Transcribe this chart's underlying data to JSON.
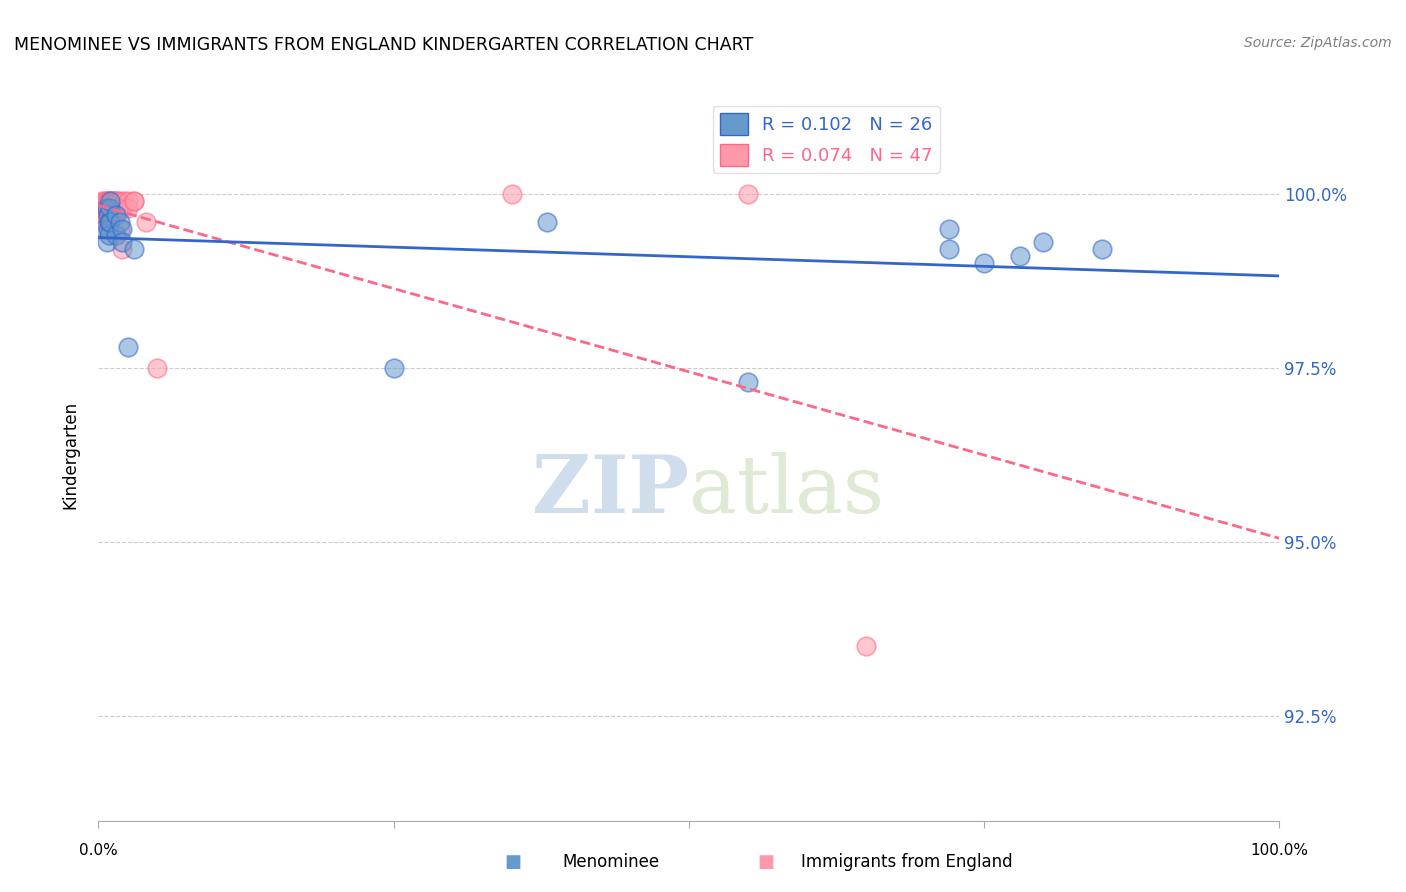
{
  "title": "MENOMINEE VS IMMIGRANTS FROM ENGLAND KINDERGARTEN CORRELATION CHART",
  "source": "Source: ZipAtlas.com",
  "ylabel": "Kindergarten",
  "yticks": [
    92.5,
    95.0,
    97.5,
    100.0
  ],
  "ytick_labels": [
    "92.5%",
    "95.0%",
    "97.5%",
    "100.0%"
  ],
  "xlim": [
    0.0,
    1.0
  ],
  "ylim": [
    91.0,
    101.5
  ],
  "legend_blue_r": "R = 0.102",
  "legend_blue_n": "N = 26",
  "legend_pink_r": "R = 0.074",
  "legend_pink_n": "N = 47",
  "blue_color": "#6699CC",
  "pink_color": "#FF99AA",
  "blue_line_color": "#3366CC",
  "pink_line_color": "#FF6688",
  "watermark_zip": "ZIP",
  "watermark_atlas": "atlas",
  "menominee_x": [
    0.005,
    0.007,
    0.007,
    0.008,
    0.008,
    0.009,
    0.009,
    0.01,
    0.01,
    0.01,
    0.015,
    0.015,
    0.018,
    0.02,
    0.02,
    0.025,
    0.03,
    0.25,
    0.38,
    0.55,
    0.72,
    0.72,
    0.75,
    0.78,
    0.8,
    0.85
  ],
  "menominee_y": [
    99.5,
    99.8,
    99.3,
    99.7,
    99.5,
    99.6,
    99.4,
    99.8,
    99.9,
    99.6,
    99.7,
    99.4,
    99.6,
    99.5,
    99.3,
    97.8,
    99.2,
    97.5,
    99.6,
    97.3,
    99.5,
    99.2,
    99.0,
    99.1,
    99.3,
    99.2
  ],
  "england_x": [
    0.003,
    0.004,
    0.004,
    0.005,
    0.005,
    0.005,
    0.005,
    0.006,
    0.006,
    0.006,
    0.006,
    0.007,
    0.007,
    0.007,
    0.008,
    0.008,
    0.008,
    0.009,
    0.009,
    0.01,
    0.01,
    0.01,
    0.011,
    0.011,
    0.012,
    0.012,
    0.013,
    0.013,
    0.014,
    0.015,
    0.015,
    0.016,
    0.017,
    0.018,
    0.018,
    0.02,
    0.02,
    0.022,
    0.025,
    0.025,
    0.03,
    0.03,
    0.04,
    0.05,
    0.35,
    0.55,
    0.65
  ],
  "england_y": [
    99.9,
    99.8,
    99.7,
    99.9,
    99.8,
    99.7,
    99.6,
    99.9,
    99.8,
    99.7,
    99.6,
    99.9,
    99.8,
    99.7,
    99.9,
    99.8,
    99.7,
    99.9,
    99.8,
    99.9,
    99.8,
    99.7,
    99.9,
    99.8,
    99.9,
    99.8,
    99.9,
    99.7,
    99.8,
    99.9,
    99.8,
    99.9,
    99.8,
    99.9,
    99.5,
    99.2,
    99.8,
    99.9,
    99.9,
    99.8,
    99.9,
    99.9,
    99.6,
    97.5,
    100.0,
    100.0,
    93.5
  ]
}
